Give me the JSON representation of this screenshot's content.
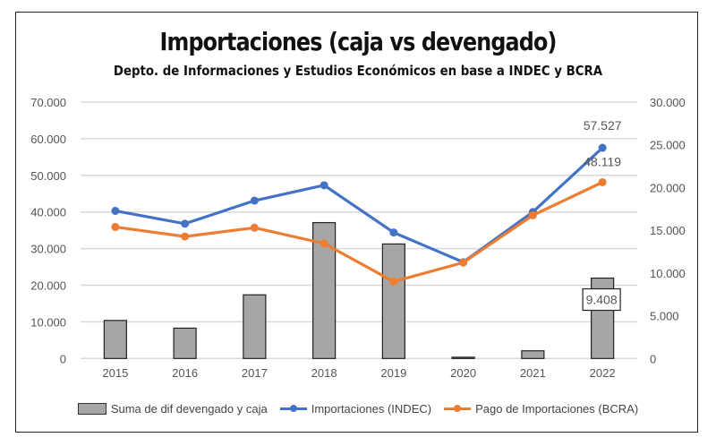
{
  "chart_data": {
    "type": "bar+line",
    "title": "Importaciones (caja vs devengado)",
    "subtitle": "Depto. de Informaciones y Estudios Económicos en base a INDEC y BCRA",
    "categories": [
      "2015",
      "2016",
      "2017",
      "2018",
      "2019",
      "2020",
      "2021",
      "2022"
    ],
    "left_axis": {
      "range": [
        0,
        70000
      ],
      "ticks": [
        "0",
        "10.000",
        "20.000",
        "30.000",
        "40.000",
        "50.000",
        "60.000",
        "70.000"
      ]
    },
    "right_axis": {
      "range": [
        0,
        30000
      ],
      "ticks": [
        "0",
        "5.000",
        "10.000",
        "15.000",
        "20.000",
        "25.000",
        "30.000"
      ]
    },
    "grid": true,
    "legend_position": "bottom",
    "series": [
      {
        "name": "Suma de dif devengado y caja",
        "type": "bar",
        "axis": "right",
        "color": "#a6a6a6",
        "values": [
          4450,
          3550,
          7450,
          15900,
          13400,
          150,
          900,
          9408
        ]
      },
      {
        "name": "Importaciones (INDEC)",
        "type": "line",
        "axis": "left",
        "color": "#4472c4",
        "values": [
          40300,
          36800,
          43100,
          47300,
          34400,
          26300,
          40000,
          57527
        ]
      },
      {
        "name": "Pago de Importaciones (BCRA)",
        "type": "line",
        "axis": "left",
        "color": "#ed7d31",
        "values": [
          35900,
          33300,
          35700,
          31400,
          21000,
          26200,
          39100,
          48119
        ]
      }
    ],
    "data_labels": {
      "indec_2022": "57.527",
      "bcra_2022": "48.119",
      "bar_2022": "9.408"
    }
  }
}
